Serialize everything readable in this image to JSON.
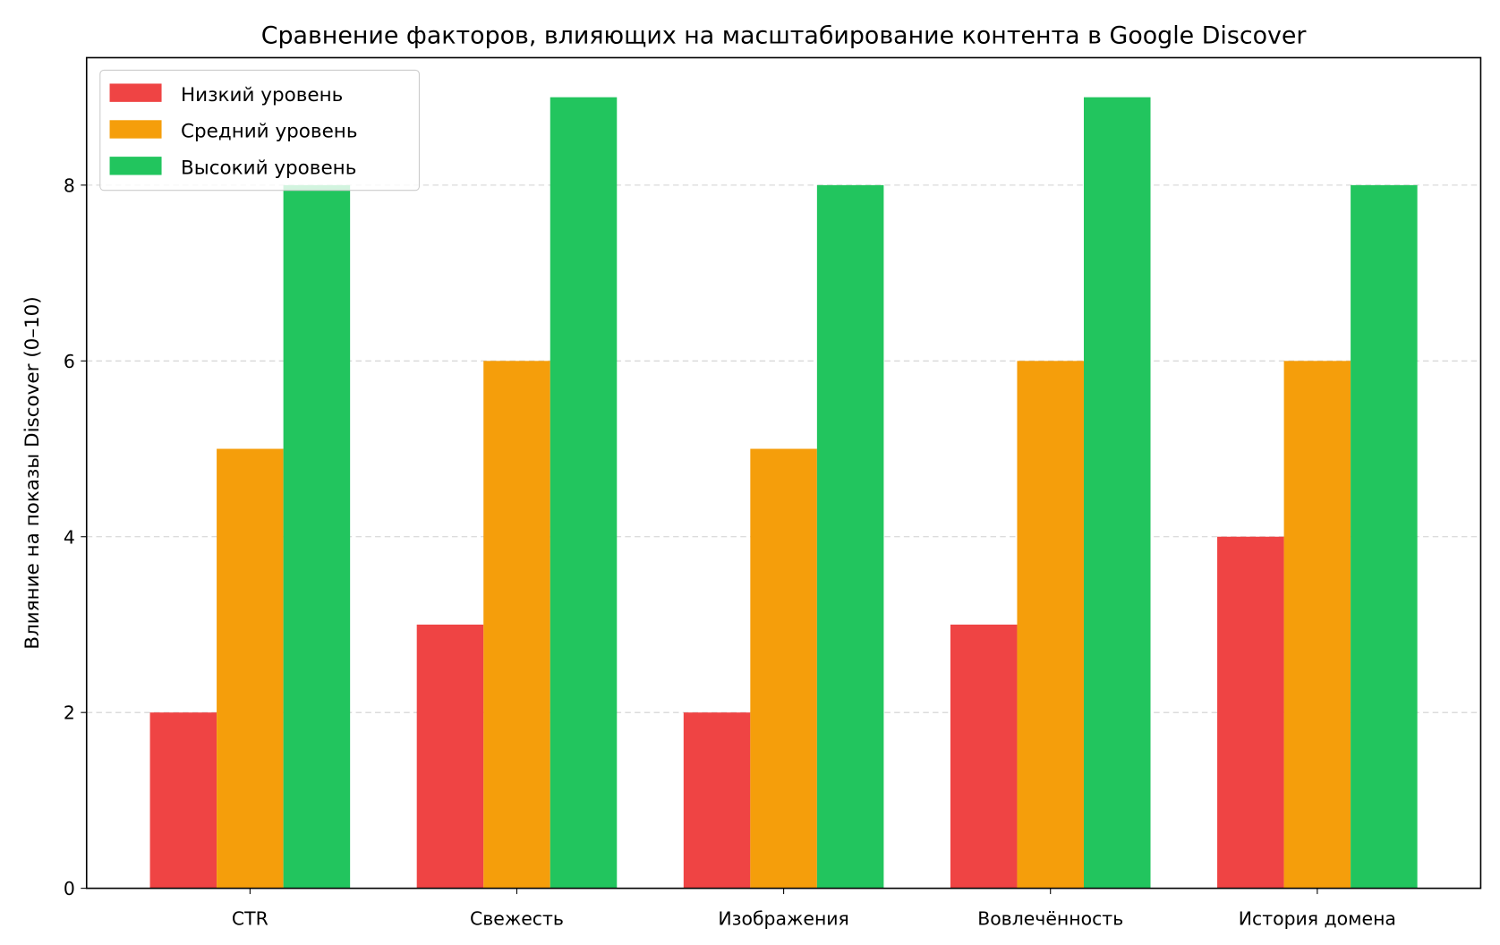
{
  "chart_data": {
    "type": "bar",
    "title": "Сравнение факторов, влияющих на масштабирование контента в Google Discover",
    "xlabel": "",
    "ylabel": "Влияние на показы Discover (0–10)",
    "categories": [
      "CTR",
      "Свежесть",
      "Изображения",
      "Вовлечённость",
      "История домена"
    ],
    "series": [
      {
        "name": "Низкий уровень",
        "color": "#ef4444",
        "values": [
          2,
          3,
          2,
          3,
          4
        ]
      },
      {
        "name": "Средний уровень",
        "color": "#f59e0b",
        "values": [
          5,
          6,
          5,
          6,
          6
        ]
      },
      {
        "name": "Высокий уровень",
        "color": "#22c55e",
        "values": [
          8,
          9,
          8,
          9,
          8
        ]
      }
    ],
    "ylim": [
      0,
      9.45
    ],
    "yticks": [
      0,
      2,
      4,
      6,
      8
    ],
    "grid": "y-dashed",
    "legend": "top-left"
  }
}
